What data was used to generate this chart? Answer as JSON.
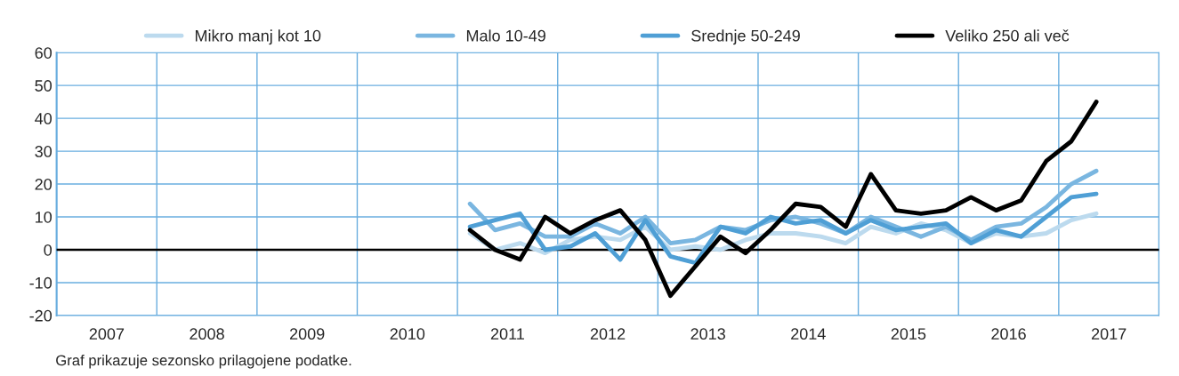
{
  "chart_data": {
    "type": "line",
    "x": [
      2010.625,
      2010.875,
      2011.125,
      2011.375,
      2011.625,
      2011.875,
      2012.125,
      2012.375,
      2012.625,
      2012.875,
      2013.125,
      2013.375,
      2013.625,
      2013.875,
      2014.125,
      2014.375,
      2014.625,
      2014.875,
      2015.125,
      2015.375,
      2015.625,
      2015.875,
      2016.125,
      2016.375,
      2016.625,
      2016.875
    ],
    "series": [
      {
        "name": "Mikro manj kot 10",
        "color": "#bcdaee",
        "values": [
          5,
          0,
          2,
          -1,
          3,
          4,
          3,
          7,
          0,
          1,
          0,
          3,
          5,
          5,
          4,
          2,
          7,
          5,
          8,
          6,
          2,
          5,
          4,
          5,
          9,
          11
        ]
      },
      {
        "name": "Malo 10-49",
        "color": "#7ab6e0",
        "values": [
          14,
          6,
          8,
          4,
          4,
          8,
          5,
          10,
          2,
          3,
          7,
          6,
          9,
          10,
          8,
          5,
          10,
          7,
          4,
          7,
          3,
          7,
          8,
          13,
          20,
          24
        ]
      },
      {
        "name": "Srednje 50-249",
        "color": "#4f9fd5",
        "values": [
          7,
          9,
          11,
          0,
          1,
          5,
          -3,
          9,
          -2,
          -4,
          7,
          5,
          10,
          8,
          9,
          5,
          9,
          6,
          7,
          8,
          2,
          6,
          4,
          10,
          16,
          17
        ]
      },
      {
        "name": "Veliko 250 ali več",
        "color": "#000000",
        "values": [
          6,
          0,
          -3,
          10,
          5,
          9,
          12,
          3,
          -14,
          -5,
          4,
          -1,
          6,
          14,
          13,
          7,
          23,
          12,
          11,
          12,
          16,
          12,
          15,
          27,
          33,
          45
        ]
      }
    ],
    "xlim": [
      2006.5,
      2017.5
    ],
    "xticks": [
      {
        "value": 2006.5,
        "label": null
      },
      {
        "value": 2007,
        "label": "2007"
      },
      {
        "value": 2007.5,
        "label": null
      },
      {
        "value": 2008,
        "label": "2008"
      },
      {
        "value": 2008.5,
        "label": null
      },
      {
        "value": 2009,
        "label": "2009"
      },
      {
        "value": 2009.5,
        "label": null
      },
      {
        "value": 2010,
        "label": "2010"
      },
      {
        "value": 2010.5,
        "label": null
      },
      {
        "value": 2011,
        "label": "2011"
      },
      {
        "value": 2011.5,
        "label": null
      },
      {
        "value": 2012,
        "label": "2012"
      },
      {
        "value": 2012.5,
        "label": null
      },
      {
        "value": 2013,
        "label": "2013"
      },
      {
        "value": 2013.5,
        "label": null
      },
      {
        "value": 2014,
        "label": "2014"
      },
      {
        "value": 2014.5,
        "label": null
      },
      {
        "value": 2015,
        "label": "2015"
      },
      {
        "value": 2015.5,
        "label": null
      },
      {
        "value": 2016,
        "label": "2016"
      },
      {
        "value": 2016.5,
        "label": null
      },
      {
        "value": 2017,
        "label": "2017"
      },
      {
        "value": 2017.5,
        "label": null
      }
    ],
    "ylim": [
      -20,
      60
    ],
    "yticks": [
      -20,
      -10,
      0,
      10,
      20,
      30,
      40,
      50,
      60
    ],
    "ref_lines": [
      {
        "axis": "y",
        "value": 0,
        "color": "#000000"
      }
    ],
    "grid": true,
    "legend": "top",
    "marker": "none",
    "line_style": "solid",
    "annotations": [
      "Graf prikazuje sezonsko prilagojene podatke."
    ]
  }
}
